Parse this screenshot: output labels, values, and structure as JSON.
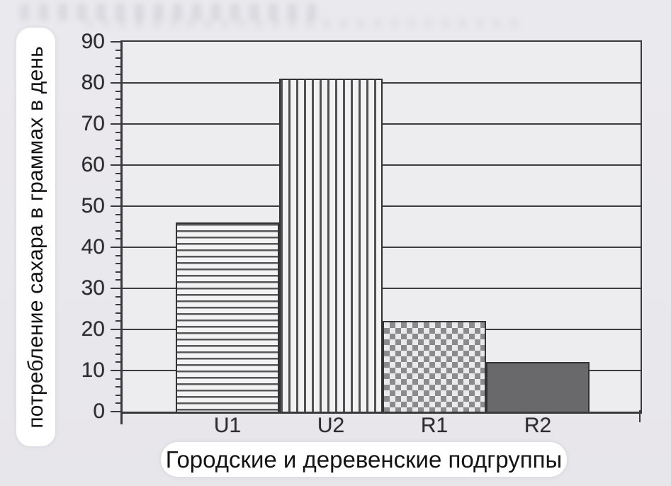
{
  "chart_data": {
    "type": "bar",
    "title": "",
    "categories": [
      "U1",
      "U2",
      "R1",
      "R2"
    ],
    "values": [
      46,
      81,
      22,
      12
    ],
    "xlabel": "Городские и деревенские подгруппы",
    "ylabel": "потребление сахара в граммах в день",
    "ylim": [
      0,
      90
    ],
    "yticks": [
      0,
      10,
      20,
      30,
      40,
      50,
      60,
      70,
      80,
      90
    ],
    "minor_tick_step": 2,
    "grid": true,
    "legend": false,
    "bar_patterns": [
      "horizontal-lines",
      "vertical-lines",
      "checkerboard",
      "solid"
    ],
    "bar_colors": {
      "hatch_line": "#57575a",
      "hatch_bg": "#f3f3f4",
      "checker_dark": "#8b8b8e",
      "checker_light": "#eaeaec",
      "solid_fill": "#69686a",
      "bar_border": "#333335"
    },
    "axis_color": "#3a3a3c",
    "plot_bg": "#ededef",
    "page_bg": "#e9e8ec",
    "label_pill_bg": "#ffffff"
  }
}
